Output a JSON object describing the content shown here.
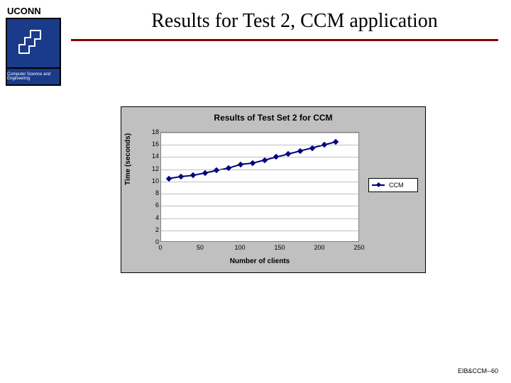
{
  "brand": "UCONN",
  "logo_caption": "Computer Science and Engineering",
  "title": "Results for Test 2, CCM application",
  "title_underline_color": "#8b0000",
  "footer": "EIB&CCM--60",
  "chart": {
    "type": "line",
    "title": "Results of Test Set 2 for CCM",
    "title_fontsize": 12,
    "xlabel": "Number of clients",
    "ylabel": "Time (seconds)",
    "label_fontsize": 10,
    "xlim": [
      0,
      250
    ],
    "ylim": [
      0,
      18
    ],
    "xticks": [
      0,
      50,
      100,
      150,
      200,
      250
    ],
    "yticks": [
      0,
      2,
      4,
      6,
      8,
      10,
      12,
      14,
      16,
      18
    ],
    "grid_color": "#c0c0c0",
    "plot_bg": "#ffffff",
    "chart_bg": "#c0c0c0",
    "series": [
      {
        "name": "CCM",
        "color": "#000080",
        "line_width": 2,
        "marker": "diamond",
        "marker_size": 6,
        "x": [
          10,
          25,
          40,
          55,
          70,
          85,
          100,
          115,
          130,
          145,
          160,
          175,
          190,
          205,
          220
        ],
        "y": [
          10.5,
          10.8,
          11.0,
          11.4,
          11.8,
          12.2,
          12.8,
          13.0,
          13.5,
          14.0,
          14.5,
          15.0,
          15.5,
          16.0,
          16.5
        ]
      }
    ],
    "legend_position": "right"
  },
  "colors": {
    "brand_blue": "#1a3a8a",
    "text": "#000000"
  }
}
